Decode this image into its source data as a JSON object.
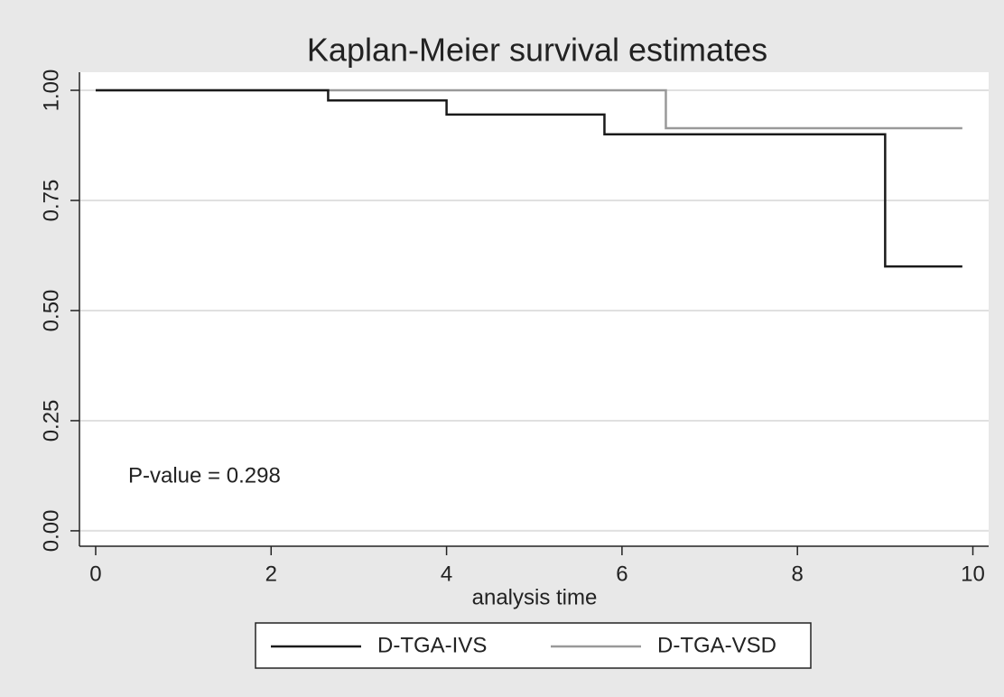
{
  "chart_data": {
    "type": "step",
    "title": "Kaplan-Meier survival estimates",
    "x_label": "analysis time",
    "annotation": "P-value = 0.298",
    "series": [
      {
        "name": "D-TGA-IVS",
        "color": "#1a1a1a",
        "x": [
          0,
          2.65,
          4.0,
          5.8,
          9.0,
          9.88
        ],
        "values": [
          1,
          0.977,
          0.945,
          0.9,
          0.6,
          0.6
        ]
      },
      {
        "name": "D-TGA-VSD",
        "color": "#999999",
        "x": [
          0,
          6.5,
          9.88
        ],
        "values": [
          1,
          0.914,
          0.914
        ]
      }
    ],
    "xlim": [
      -0.185,
      10.18
    ],
    "xticks": [
      0,
      2,
      4,
      6,
      8,
      10
    ],
    "ylim": [
      -0.035,
      1.041
    ],
    "yticks": [
      {
        "value": 0,
        "label": "0.00"
      },
      {
        "value": 0.25,
        "label": "0.25"
      },
      {
        "value": 0.5,
        "label": "0.50"
      },
      {
        "value": 0.75,
        "label": "0.75"
      },
      {
        "value": 1,
        "label": "1.00"
      }
    ],
    "grid": true,
    "legend": "bottom"
  }
}
